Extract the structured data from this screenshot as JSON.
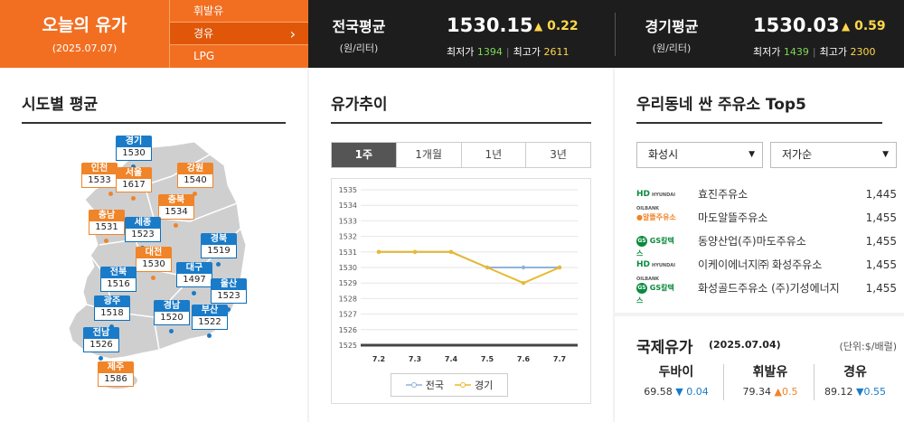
{
  "header": {
    "title": "오늘의 유가",
    "date": "(2025.07.07)",
    "fuel_tabs": [
      {
        "label": "휘발유",
        "active": false
      },
      {
        "label": "경유",
        "active": true
      },
      {
        "label": "LPG",
        "active": false
      }
    ],
    "national": {
      "label": "전국평균",
      "unit": "(원/리터)",
      "value": "1530.15",
      "change": "0.22",
      "direction": "up",
      "min_label": "최저가",
      "min": "1394",
      "max_label": "최고가",
      "max": "2611"
    },
    "gyeonggi": {
      "label": "경기평균",
      "unit": "(원/리터)",
      "value": "1530.03",
      "change": "0.59",
      "direction": "up",
      "min_label": "최저가",
      "min": "1439",
      "max_label": "최고가",
      "max": "2300"
    }
  },
  "regions_panel": {
    "title": "시도별 평균",
    "regions": [
      {
        "name": "경기",
        "price": "1530",
        "color": "blue"
      },
      {
        "name": "인천",
        "price": "1533",
        "color": "orange"
      },
      {
        "name": "서울",
        "price": "1617",
        "color": "orange"
      },
      {
        "name": "강원",
        "price": "1540",
        "color": "orange"
      },
      {
        "name": "충북",
        "price": "1534",
        "color": "orange"
      },
      {
        "name": "충남",
        "price": "1531",
        "color": "orange"
      },
      {
        "name": "세종",
        "price": "1523",
        "color": "blue"
      },
      {
        "name": "경북",
        "price": "1519",
        "color": "blue"
      },
      {
        "name": "대전",
        "price": "1530",
        "color": "orange"
      },
      {
        "name": "전북",
        "price": "1516",
        "color": "blue"
      },
      {
        "name": "대구",
        "price": "1497",
        "color": "blue"
      },
      {
        "name": "울산",
        "price": "1523",
        "color": "blue"
      },
      {
        "name": "광주",
        "price": "1518",
        "color": "blue"
      },
      {
        "name": "경남",
        "price": "1520",
        "color": "blue"
      },
      {
        "name": "부산",
        "price": "1522",
        "color": "blue"
      },
      {
        "name": "전남",
        "price": "1526",
        "color": "blue"
      },
      {
        "name": "제주",
        "price": "1586",
        "color": "orange"
      }
    ]
  },
  "trend_panel": {
    "title": "유가추이",
    "range_tabs": [
      {
        "label": "1주",
        "active": true
      },
      {
        "label": "1개월",
        "active": false
      },
      {
        "label": "1년",
        "active": false
      },
      {
        "label": "3년",
        "active": false
      }
    ]
  },
  "chart_data": {
    "type": "line",
    "x": [
      "7.2",
      "7.3",
      "7.4",
      "7.5",
      "7.6",
      "7.7"
    ],
    "ylim": [
      1525,
      1535
    ],
    "yticks": [
      1525,
      1526,
      1527,
      1528,
      1529,
      1530,
      1531,
      1532,
      1533,
      1534,
      1535
    ],
    "grid": true,
    "legend": "bottom",
    "series": [
      {
        "name": "전국",
        "color": "#8fb3d9",
        "values": [
          1531,
          1531,
          1531,
          1530,
          1530,
          1530
        ]
      },
      {
        "name": "경기",
        "color": "#e8b92e",
        "values": [
          1531,
          1531,
          1531,
          1530,
          1529,
          1530
        ]
      }
    ]
  },
  "stations_panel": {
    "title": "우리동네 싼 주유소 Top5",
    "city_select": "화성시",
    "sort_select": "저가순",
    "stations": [
      {
        "brand": "HD",
        "brand_sub": "HYUNDAI OILBANK",
        "logo": "hd",
        "name": "효진주유소",
        "price": "1,445"
      },
      {
        "brand": "알뜰주유소",
        "brand_sub": "",
        "logo": "al",
        "name": "마도알뜰주유소",
        "price": "1,455"
      },
      {
        "brand": "GS칼텍스",
        "brand_sub": "",
        "logo": "gs",
        "name": "동양산업(주)마도주유소",
        "price": "1,455"
      },
      {
        "brand": "HD",
        "brand_sub": "HYUNDAI OILBANK",
        "logo": "hd",
        "name": "이케이에너지㈜ 화성주유소",
        "price": "1,455"
      },
      {
        "brand": "GS칼텍스",
        "brand_sub": "",
        "logo": "gs",
        "name": "화성골드주유소 (주)기성에너지",
        "price": "1,455"
      }
    ]
  },
  "intl_panel": {
    "title": "국제유가",
    "date": "(2025.07.04)",
    "unit": "(단위:$/배럴)",
    "items": [
      {
        "name": "두바이",
        "price": "69.58",
        "change": "0.04",
        "direction": "down"
      },
      {
        "name": "휘발유",
        "price": "79.34",
        "change": "0.5",
        "direction": "up"
      },
      {
        "name": "경유",
        "price": "89.12",
        "change": "0.55",
        "direction": "down"
      }
    ]
  }
}
